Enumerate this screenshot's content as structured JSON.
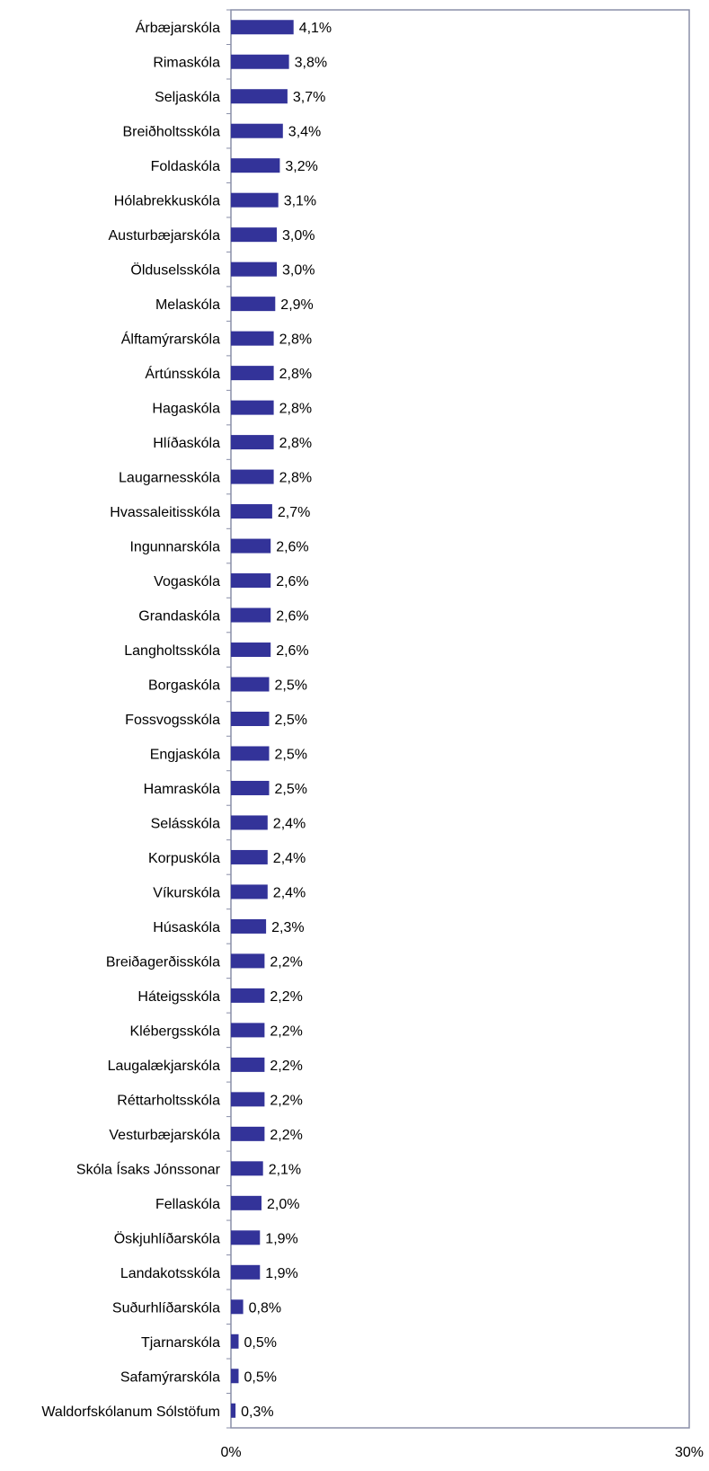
{
  "chart_data": {
    "type": "bar",
    "orientation": "horizontal",
    "title": "",
    "xlabel": "",
    "ylabel": "",
    "xlim": [
      0,
      30
    ],
    "x_tick_labels": [
      "0%",
      "30%"
    ],
    "grid": false,
    "legend": "none",
    "bar_color": "#333399",
    "categories": [
      "Árbæjarskóla",
      "Rimaskóla",
      "Seljaskóla",
      "Breiðholtsskóla",
      "Foldaskóla",
      "Hólabrekkuskóla",
      "Austurbæjarskóla",
      "Ölduselsskóla",
      "Melaskóla",
      "Álftamýrarskóla",
      "Ártúnsskóla",
      "Hagaskóla",
      "Hlíðaskóla",
      "Laugarnesskóla",
      "Hvassaleitisskóla",
      "Ingunnarskóla",
      "Vogaskóla",
      "Grandaskóla",
      "Langholtsskóla",
      "Borgaskóla",
      "Fossvogsskóla",
      "Engjaskóla",
      "Hamraskóla",
      "Selásskóla",
      "Korpuskóla",
      "Víkurskóla",
      "Húsaskóla",
      "Breiðagerðisskóla",
      "Háteigsskóla",
      "Klébergsskóla",
      "Laugalækjarskóla",
      "Réttarholtsskóla",
      "Vesturbæjarskóla",
      "Skóla Ísaks Jónssonar",
      "Fellaskóla",
      "Öskjuhlíðarskóla",
      "Landakotsskóla",
      "Suðurhlíðarskóla",
      "Tjarnarskóla",
      "Safamýrarskóla",
      "Waldorfskólanum Sólstöfum"
    ],
    "values": [
      4.1,
      3.8,
      3.7,
      3.4,
      3.2,
      3.1,
      3.0,
      3.0,
      2.9,
      2.8,
      2.8,
      2.8,
      2.8,
      2.8,
      2.7,
      2.6,
      2.6,
      2.6,
      2.6,
      2.5,
      2.5,
      2.5,
      2.5,
      2.4,
      2.4,
      2.4,
      2.3,
      2.2,
      2.2,
      2.2,
      2.2,
      2.2,
      2.2,
      2.1,
      2.0,
      1.9,
      1.9,
      0.8,
      0.5,
      0.5,
      0.3
    ],
    "data_labels": [
      "4,1%",
      "3,8%",
      "3,7%",
      "3,4%",
      "3,2%",
      "3,1%",
      "3,0%",
      "3,0%",
      "2,9%",
      "2,8%",
      "2,8%",
      "2,8%",
      "2,8%",
      "2,8%",
      "2,7%",
      "2,6%",
      "2,6%",
      "2,6%",
      "2,6%",
      "2,5%",
      "2,5%",
      "2,5%",
      "2,5%",
      "2,4%",
      "2,4%",
      "2,4%",
      "2,3%",
      "2,2%",
      "2,2%",
      "2,2%",
      "2,2%",
      "2,2%",
      "2,2%",
      "2,1%",
      "2,0%",
      "1,9%",
      "1,9%",
      "0,8%",
      "0,5%",
      "0,5%",
      "0,3%"
    ]
  }
}
